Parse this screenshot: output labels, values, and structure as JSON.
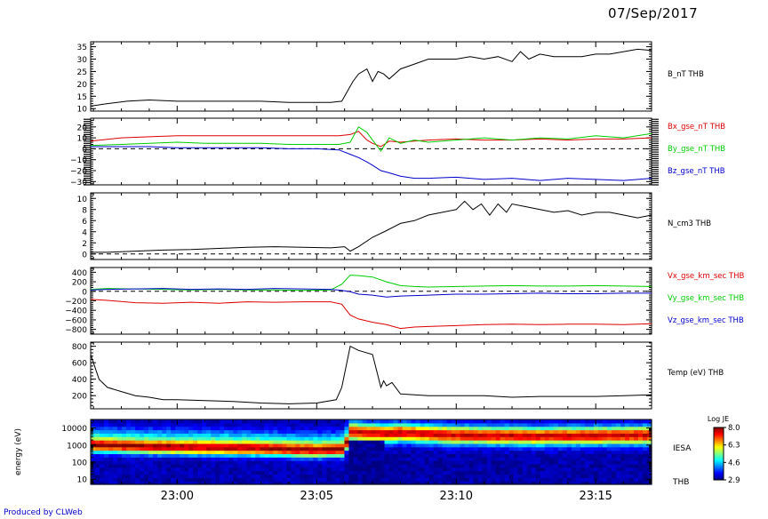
{
  "header": {
    "date": "07/Sep/2017"
  },
  "footer": {
    "credit": "Produced by CLWeb"
  },
  "chart_data": {
    "type": "line",
    "x_ticks": [
      "23:00",
      "23:05",
      "23:10",
      "23:15"
    ],
    "x_tick_minutes": [
      180,
      185,
      190,
      195
    ],
    "x_range_minutes": [
      176.9,
      197.0
    ],
    "panels": [
      {
        "id": "bt",
        "ylim": [
          9,
          37
        ],
        "yticks": [
          10,
          15,
          20,
          25,
          30,
          35
        ],
        "ylabels": [
          "10",
          "15",
          "20",
          "25",
          "30",
          "35"
        ],
        "zero_line": false,
        "series": [
          {
            "name": "B_nT THB",
            "color": "#000000",
            "x": [
              176.9,
              177.5,
              178.2,
              179.0,
              180.0,
              181.0,
              182.0,
              183.0,
              184.0,
              185.0,
              185.5,
              185.9,
              186.1,
              186.3,
              186.5,
              186.8,
              187.0,
              187.2,
              187.4,
              187.6,
              188.0,
              188.5,
              189.0,
              189.5,
              190.0,
              190.5,
              191.0,
              191.5,
              192.0,
              192.3,
              192.6,
              193.0,
              193.5,
              194.0,
              194.5,
              195.0,
              195.5,
              196.0,
              196.5,
              197.0
            ],
            "y": [
              11,
              12,
              13,
              13.5,
              13,
              13,
              13,
              13,
              12.5,
              12.5,
              12.5,
              13,
              17,
              21,
              24,
              26,
              21,
              25,
              24,
              22,
              26,
              28,
              30,
              30,
              30,
              31,
              30,
              31,
              29,
              33,
              30,
              32,
              31,
              31,
              31,
              32,
              32,
              33,
              34,
              33.5
            ]
          }
        ]
      },
      {
        "id": "bgse",
        "ylim": [
          -33,
          28
        ],
        "yticks": [
          -30,
          -20,
          -10,
          0,
          10,
          20
        ],
        "ylabels": [
          "−30",
          "−20",
          "−10",
          "0",
          "10",
          "20"
        ],
        "zero_line": true,
        "series": [
          {
            "name": "Bx_gse_nT THB",
            "color": "#dd0000",
            "x": [
              176.9,
              178.0,
              179.0,
              180.0,
              181.0,
              182.0,
              183.0,
              184.0,
              185.0,
              185.8,
              186.2,
              186.5,
              186.8,
              187.0,
              187.3,
              187.6,
              188.0,
              188.5,
              189.0,
              190.0,
              191.0,
              192.0,
              193.0,
              194.0,
              195.0,
              196.0,
              197.0
            ],
            "y": [
              7,
              10,
              11,
              12,
              12,
              12,
              12,
              12,
              12,
              12,
              13,
              16,
              8,
              5,
              2,
              7,
              6,
              7,
              8,
              9,
              8,
              8,
              9,
              8,
              9,
              9,
              10
            ]
          },
          {
            "name": "By_gse_nT THB",
            "color": "#00cc00",
            "x": [
              176.9,
              178.0,
              179.0,
              180.0,
              181.0,
              182.0,
              183.0,
              184.0,
              185.0,
              185.8,
              186.2,
              186.5,
              186.8,
              187.0,
              187.3,
              187.6,
              188.0,
              188.5,
              189.0,
              190.0,
              191.0,
              192.0,
              193.0,
              194.0,
              195.0,
              196.0,
              197.0
            ],
            "y": [
              3,
              4,
              5,
              6,
              5,
              5,
              5,
              4,
              4,
              4,
              6,
              20,
              15,
              8,
              -2,
              10,
              5,
              8,
              6,
              8,
              10,
              8,
              10,
              9,
              12,
              10,
              14
            ]
          },
          {
            "name": "Bz_gse_nT THB",
            "color": "#0000cc",
            "x": [
              176.9,
              178.0,
              179.0,
              180.0,
              181.0,
              182.0,
              183.0,
              184.0,
              185.0,
              185.8,
              186.2,
              186.5,
              186.8,
              187.0,
              187.3,
              187.6,
              188.0,
              188.5,
              189.0,
              190.0,
              191.0,
              192.0,
              193.0,
              194.0,
              195.0,
              196.0,
              197.0
            ],
            "y": [
              2,
              2,
              2,
              1,
              1,
              1,
              1,
              0,
              0,
              -1,
              -5,
              -8,
              -12,
              -15,
              -20,
              -22,
              -25,
              -27,
              -27,
              -26,
              -28,
              -27,
              -29,
              -27,
              -28,
              -29,
              -27
            ]
          }
        ]
      },
      {
        "id": "n",
        "ylim": [
          -1,
          11
        ],
        "yticks": [
          0,
          2,
          4,
          6,
          8,
          10
        ],
        "ylabels": [
          "0",
          "2",
          "4",
          "6",
          "8",
          "10"
        ],
        "zero_line": true,
        "series": [
          {
            "name": "N_cm3 THB",
            "color": "#000000",
            "x": [
              176.9,
              177.5,
              178.5,
              179.5,
              180.5,
              181.5,
              182.5,
              183.5,
              184.5,
              185.5,
              186.0,
              186.2,
              186.5,
              187.0,
              187.5,
              188.0,
              188.5,
              189.0,
              189.5,
              190.0,
              190.3,
              190.6,
              190.9,
              191.2,
              191.5,
              191.8,
              192.0,
              192.5,
              193.0,
              193.5,
              194.0,
              194.5,
              195.0,
              195.5,
              196.0,
              196.5,
              197.0
            ],
            "y": [
              0.3,
              0.3,
              0.5,
              0.7,
              0.8,
              1.0,
              1.2,
              1.3,
              1.2,
              1.1,
              1.3,
              0.5,
              1.3,
              3.0,
              4.2,
              5.5,
              6.0,
              7.0,
              7.5,
              8.0,
              9.5,
              8.0,
              9.0,
              7.0,
              9.0,
              7.5,
              9.0,
              8.5,
              8.0,
              7.5,
              7.8,
              7.0,
              7.5,
              7.5,
              7.0,
              6.5,
              7.0
            ]
          }
        ]
      },
      {
        "id": "v",
        "ylim": [
          -900,
          500
        ],
        "yticks": [
          -800,
          -600,
          -400,
          -200,
          0,
          200,
          400
        ],
        "ylabels": [
          "−800",
          "−600",
          "−400",
          "−200",
          "0",
          "200",
          "400"
        ],
        "zero_line": true,
        "series": [
          {
            "name": "Vx_gse_km_sec THB",
            "color": "#dd0000",
            "x": [
              176.9,
              177.5,
              178.5,
              179.5,
              180.5,
              181.5,
              182.5,
              183.5,
              184.5,
              185.5,
              185.9,
              186.2,
              186.5,
              187.0,
              187.5,
              188.0,
              188.5,
              189.0,
              190.0,
              191.0,
              192.0,
              193.0,
              194.0,
              195.0,
              196.0,
              197.0
            ],
            "y": [
              -170,
              -190,
              -240,
              -250,
              -230,
              -250,
              -220,
              -230,
              -220,
              -220,
              -270,
              -500,
              -580,
              -650,
              -700,
              -780,
              -750,
              -740,
              -720,
              -700,
              -690,
              -700,
              -690,
              -690,
              -700,
              -680
            ]
          },
          {
            "name": "Vy_gse_km_sec THB",
            "color": "#00cc00",
            "x": [
              176.9,
              177.5,
              178.5,
              179.5,
              180.5,
              181.5,
              182.5,
              183.5,
              184.5,
              185.5,
              185.9,
              186.2,
              186.5,
              187.0,
              187.5,
              188.0,
              188.5,
              189.0,
              190.0,
              191.0,
              192.0,
              193.0,
              194.0,
              195.0,
              196.0,
              197.0
            ],
            "y": [
              40,
              60,
              50,
              40,
              30,
              40,
              30,
              30,
              20,
              30,
              150,
              340,
              330,
              300,
              200,
              120,
              100,
              90,
              100,
              110,
              120,
              110,
              110,
              120,
              110,
              100
            ]
          },
          {
            "name": "Vz_gse_km_sec THB",
            "color": "#0000cc",
            "x": [
              176.9,
              177.5,
              178.5,
              179.5,
              180.5,
              181.5,
              182.5,
              183.5,
              184.5,
              185.5,
              185.9,
              186.2,
              186.5,
              187.0,
              187.5,
              188.0,
              188.5,
              189.0,
              190.0,
              191.0,
              192.0,
              193.0,
              194.0,
              195.0,
              196.0,
              197.0
            ],
            "y": [
              30,
              40,
              50,
              60,
              40,
              50,
              40,
              60,
              50,
              40,
              20,
              -10,
              -60,
              -80,
              -120,
              -100,
              -90,
              -80,
              -60,
              -60,
              -50,
              -40,
              -50,
              -50,
              -40,
              -40
            ]
          }
        ]
      },
      {
        "id": "t",
        "ylim": [
          40,
          850
        ],
        "yticks": [
          200,
          400,
          600,
          800
        ],
        "ylabels": [
          "200",
          "400",
          "600",
          "800"
        ],
        "zero_line": false,
        "series": [
          {
            "name": "Temp (eV) THB",
            "color": "#000000",
            "x": [
              176.9,
              177.2,
              177.5,
              178.0,
              178.5,
              179.0,
              179.5,
              180.0,
              181.0,
              182.0,
              183.0,
              184.0,
              185.0,
              185.7,
              185.9,
              186.2,
              186.5,
              187.0,
              187.3,
              187.4,
              187.5,
              187.7,
              188.0,
              188.5,
              189.0,
              190.0,
              191.0,
              192.0,
              193.0,
              194.0,
              195.0,
              196.0,
              197.0
            ],
            "y": [
              700,
              400,
              300,
              250,
              200,
              180,
              150,
              150,
              140,
              130,
              110,
              100,
              110,
              150,
              300,
              800,
              750,
              700,
              300,
              380,
              320,
              360,
              220,
              210,
              200,
              200,
              200,
              180,
              190,
              190,
              190,
              200,
              210
            ]
          }
        ]
      },
      {
        "id": "esa",
        "type": "heatmap",
        "ylim_log": [
          0.7,
          4.5
        ],
        "yticks": [
          1,
          2,
          3,
          4
        ],
        "ylabels": [
          "10",
          "100",
          "1000",
          "10000"
        ],
        "ylabel": "energy (eV)",
        "instrument": "IESA",
        "probe": "THB",
        "colorbar": {
          "title": "Log JE",
          "range": [
            2.9,
            8.0
          ],
          "labels": [
            "8.0",
            "6.3",
            "4.6",
            "2.9"
          ]
        },
        "peak_energy_log": {
          "x": [
            176.9,
            179.0,
            181.0,
            183.0,
            185.0,
            186.0,
            186.2,
            187.5,
            188.0,
            190.0,
            193.0,
            197.0
          ],
          "y": [
            3.0,
            2.9,
            2.85,
            2.8,
            2.7,
            2.75,
            3.8,
            3.7,
            3.75,
            3.6,
            3.55,
            3.6
          ]
        }
      }
    ]
  }
}
